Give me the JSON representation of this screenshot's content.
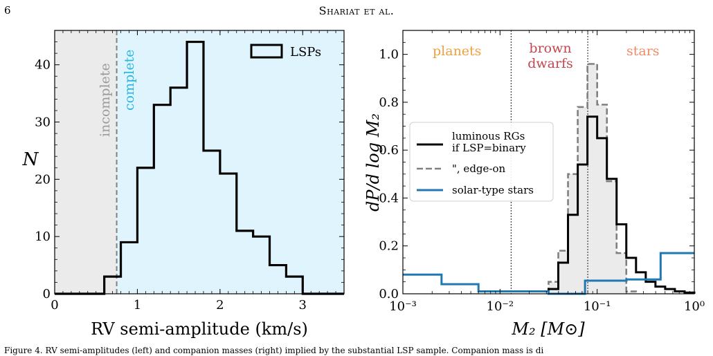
{
  "page": {
    "page_number": "6",
    "running_head": "Shariat et al.",
    "caption": "Figure 4. RV semi-amplitudes (left) and companion masses (right) implied by the substantial LSP sample. Companion mass is di"
  },
  "chart_data": [
    {
      "type": "histogram",
      "xlabel": "RV semi-amplitude (km/s)",
      "ylabel": "N",
      "xlim": [
        0,
        3.5
      ],
      "ylim": [
        0,
        46
      ],
      "xticks": [
        0,
        1,
        2,
        3
      ],
      "yticks": [
        0,
        10,
        20,
        30,
        40
      ],
      "completeness_cut": 0.75,
      "region_labels": {
        "left": "incomplete",
        "right": "complete"
      },
      "region_colors": {
        "left": "#ebebeb",
        "right": "#dff4fc"
      },
      "legend": {
        "label": "LSPs",
        "position": "top-right"
      },
      "bins": [
        0.6,
        0.8,
        1.0,
        1.2,
        1.4,
        1.6,
        1.8,
        2.0,
        2.2,
        2.4,
        2.6,
        2.8,
        3.0
      ],
      "counts": [
        3,
        9,
        22,
        33,
        36,
        44,
        25,
        21,
        11,
        10,
        5,
        3
      ]
    },
    {
      "type": "line",
      "xlabel": "M₂ [M⊙]",
      "ylabel": "dP/d log M₂",
      "xscale": "log",
      "xlim": [
        0.001,
        1
      ],
      "ylim": [
        0,
        1.1
      ],
      "xtick_labels": [
        "10⁻³",
        "10⁻²",
        "10⁻¹",
        "10⁰"
      ],
      "yticks": [
        0.0,
        0.2,
        0.4,
        0.6,
        0.8,
        1.0
      ],
      "dividers": [
        0.013,
        0.08
      ],
      "region_labels": [
        {
          "text": "planets",
          "color": "#f0a040"
        },
        {
          "text": "brown",
          "color": "#c0474f"
        },
        {
          "text": "dwarfs",
          "color": "#c0474f"
        },
        {
          "text": "stars",
          "color": "#f08a6a"
        }
      ],
      "legend": {
        "position": "center-left"
      },
      "series": [
        {
          "name": "luminous RGs",
          "name_line2": "if LSP=binary",
          "style": "solid",
          "color": "#000000",
          "edges": [
            0.0316,
            0.0398,
            0.0501,
            0.0631,
            0.0794,
            0.1,
            0.1259,
            0.1585,
            0.1995,
            0.2512,
            0.3162,
            0.3981,
            0.5012,
            0.631,
            0.7943,
            1.0
          ],
          "values": [
            0.02,
            0.13,
            0.33,
            0.54,
            0.74,
            0.65,
            0.48,
            0.29,
            0.15,
            0.09,
            0.05,
            0.03,
            0.02,
            0.01,
            0.005
          ]
        },
        {
          "name": "\", edge-on",
          "style": "dashed",
          "color": "#808080",
          "edges": [
            0.0316,
            0.0398,
            0.0501,
            0.0631,
            0.0794,
            0.1,
            0.1259,
            0.1585,
            0.1995,
            0.2512
          ],
          "values": [
            0.05,
            0.18,
            0.5,
            0.78,
            0.96,
            0.79,
            0.47,
            0.17,
            0.01
          ]
        },
        {
          "name": "solar-type stars",
          "style": "solid",
          "color": "#1f77b4",
          "edges": [
            0.001,
            0.0025,
            0.006,
            0.0316,
            0.075,
            0.2,
            0.45,
            1.0
          ],
          "values": [
            0.08,
            0.04,
            0.01,
            0.0,
            0.055,
            0.06,
            0.17
          ]
        }
      ]
    }
  ]
}
